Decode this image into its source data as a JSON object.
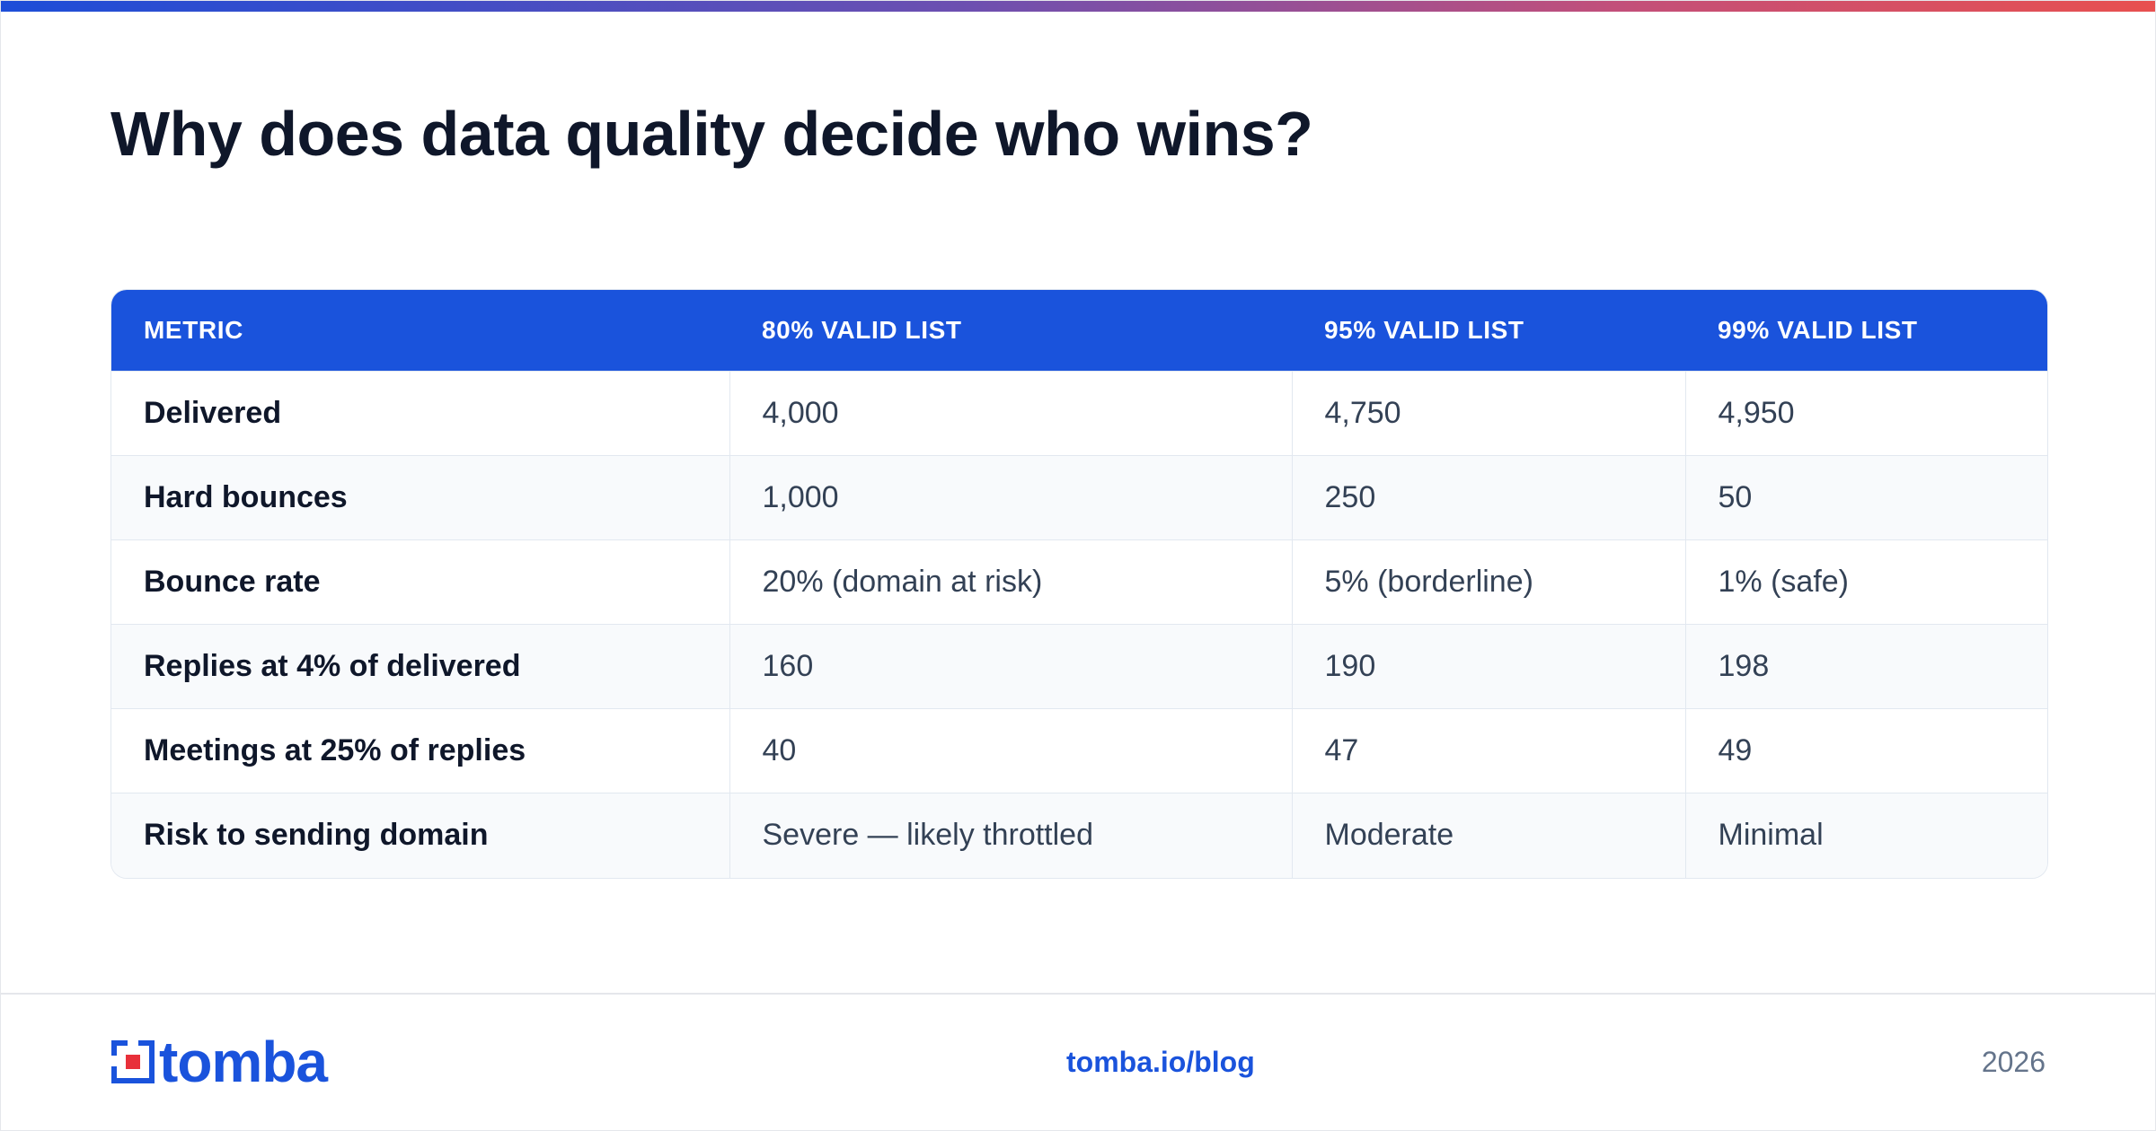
{
  "colors": {
    "brand_blue": "#1a53dc",
    "brand_red": "#e8303a",
    "title_text": "#0f172a",
    "gradient": [
      "#1d4ed8",
      "#6d4fb0",
      "#c24f7a",
      "#e8504f"
    ]
  },
  "title": "Why does data quality decide who wins?",
  "table": {
    "headers": [
      "METRIC",
      "80% VALID LIST",
      "95% VALID LIST",
      "99% VALID LIST"
    ],
    "rows": [
      [
        "Delivered",
        "4,000",
        "4,750",
        "4,950"
      ],
      [
        "Hard bounces",
        "1,000",
        "250",
        "50"
      ],
      [
        "Bounce rate",
        "20% (domain at risk)",
        "5% (borderline)",
        "1% (safe)"
      ],
      [
        "Replies at 4% of delivered",
        "160",
        "190",
        "198"
      ],
      [
        "Meetings at 25% of replies",
        "40",
        "47",
        "49"
      ],
      [
        "Risk to sending domain",
        "Severe — likely throttled",
        "Moderate",
        "Minimal"
      ]
    ]
  },
  "footer": {
    "logo_text": "tomba",
    "logo_icon": "tomba-logo-icon",
    "link": "tomba.io/blog",
    "year": "2026"
  }
}
